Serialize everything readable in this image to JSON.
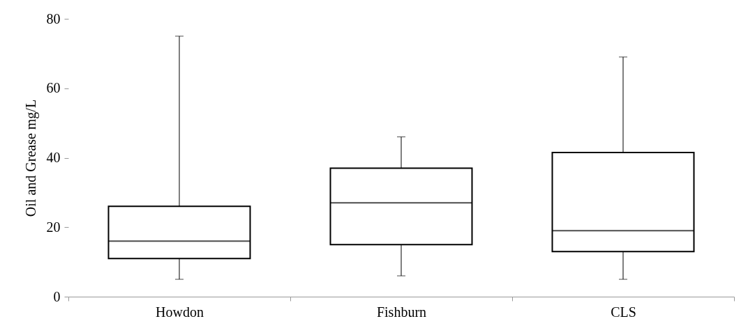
{
  "chart_data": {
    "type": "box",
    "ylabel": "Oil and Grease mg/L",
    "categories": [
      "Howdon",
      "Fishburn",
      "CLS"
    ],
    "boxes": [
      {
        "low": 5,
        "q1": 11,
        "median": 16,
        "q3": 26,
        "high": 75
      },
      {
        "low": 6,
        "q1": 15,
        "median": 27,
        "q3": 37,
        "high": 46
      },
      {
        "low": 5,
        "q1": 13,
        "median": 19,
        "q3": 41.5,
        "high": 69
      }
    ],
    "ylim": [
      0,
      80
    ],
    "yticks": [
      0,
      20,
      40,
      60,
      80
    ]
  }
}
